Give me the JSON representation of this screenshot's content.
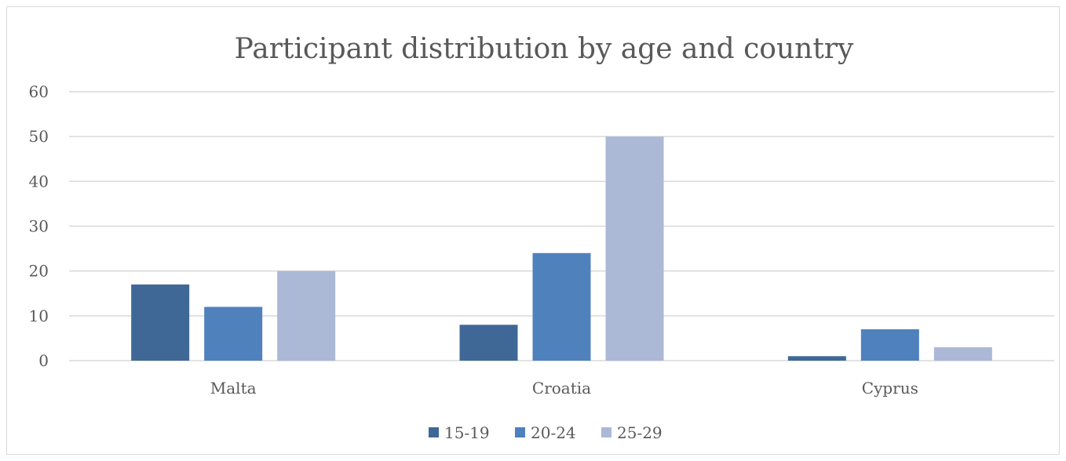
{
  "chart_data": {
    "type": "bar",
    "title": "Participant distribution by age and country",
    "categories": [
      "Malta",
      "Croatia",
      "Cyprus"
    ],
    "series": [
      {
        "name": "15-19",
        "values": [
          17,
          8,
          1
        ],
        "color": "#3f6897"
      },
      {
        "name": "20-24",
        "values": [
          12,
          24,
          7
        ],
        "color": "#4f81bd"
      },
      {
        "name": "25-29",
        "values": [
          20,
          50,
          3
        ],
        "color": "#abb9d6"
      }
    ],
    "ylim": [
      0,
      60
    ],
    "yticks": [
      "0",
      "10",
      "20",
      "30",
      "40",
      "50",
      "60"
    ],
    "grid": true,
    "legend": "bottom"
  }
}
